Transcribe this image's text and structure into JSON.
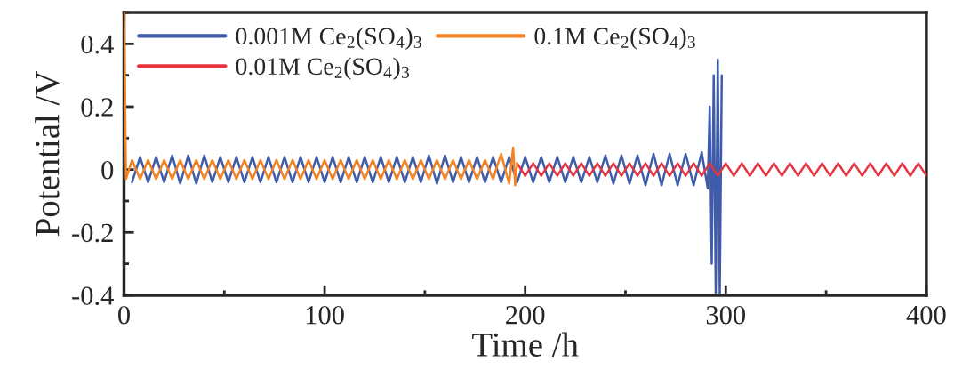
{
  "chart_data": {
    "type": "line",
    "xlabel": "Time /h",
    "ylabel": "Potential /V",
    "xlim": [
      0,
      400
    ],
    "xticks": [
      0,
      100,
      200,
      300,
      400
    ],
    "ylim": [
      -0.4,
      0.5
    ],
    "yticks": [
      -0.4,
      -0.2,
      0,
      0.2,
      0.4
    ],
    "legend": "top left",
    "grid": false,
    "line_style": "solid",
    "marker": "none",
    "series": [
      {
        "name": "0.001M Ce$_{2}$(SO$_{4}$)$_{3}$",
        "color": "#3f5bab",
        "x": [
          4,
          8,
          12,
          16,
          20,
          24,
          28,
          32,
          36,
          40,
          44,
          48,
          52,
          56,
          60,
          64,
          68,
          72,
          76,
          80,
          84,
          88,
          92,
          96,
          100,
          104,
          108,
          112,
          116,
          120,
          124,
          128,
          132,
          136,
          140,
          144,
          148,
          152,
          156,
          160,
          164,
          168,
          172,
          176,
          180,
          184,
          188,
          192,
          196,
          200,
          204,
          208,
          212,
          216,
          220,
          224,
          228,
          232,
          236,
          240,
          244,
          248,
          252,
          256,
          260,
          264,
          268,
          272,
          276,
          280,
          284,
          288,
          291,
          292,
          293,
          294,
          295,
          296,
          297,
          298
        ],
        "values": [
          -0.04,
          0.04,
          -0.04,
          0.04,
          -0.04,
          0.045,
          -0.045,
          0.045,
          -0.045,
          0.045,
          -0.04,
          0.04,
          -0.04,
          0.04,
          -0.04,
          0.04,
          -0.04,
          0.04,
          -0.04,
          0.04,
          -0.04,
          0.04,
          -0.04,
          0.04,
          -0.04,
          0.04,
          -0.04,
          0.04,
          -0.04,
          0.04,
          -0.04,
          0.04,
          -0.04,
          0.04,
          -0.04,
          0.04,
          -0.04,
          0.045,
          -0.045,
          0.045,
          -0.04,
          0.04,
          -0.04,
          0.04,
          -0.04,
          0.04,
          -0.04,
          0.04,
          -0.04,
          0.04,
          -0.04,
          0.04,
          -0.04,
          0.04,
          -0.04,
          0.04,
          -0.04,
          0.04,
          -0.04,
          0.045,
          -0.045,
          0.045,
          -0.045,
          0.045,
          -0.05,
          0.05,
          -0.05,
          0.05,
          -0.05,
          0.05,
          -0.05,
          0.055,
          -0.06,
          0.2,
          -0.3,
          0.3,
          -0.4,
          0.35,
          -0.4,
          0.3
        ]
      },
      {
        "name": "0.01M Ce$_{2}$(SO$_{4}$)$_{3}$",
        "color": "#e8343f",
        "x": [
          196,
          200,
          204,
          208,
          212,
          216,
          220,
          224,
          228,
          232,
          236,
          240,
          244,
          248,
          252,
          256,
          260,
          264,
          268,
          272,
          276,
          280,
          284,
          288,
          292,
          296,
          300,
          304,
          308,
          312,
          316,
          320,
          324,
          328,
          332,
          336,
          340,
          344,
          348,
          352,
          356,
          360,
          364,
          368,
          372,
          376,
          380,
          384,
          388,
          392,
          396,
          400
        ],
        "values": [
          0.02,
          -0.02,
          0.02,
          -0.02,
          0.02,
          -0.02,
          0.02,
          -0.02,
          0.02,
          -0.02,
          0.02,
          -0.02,
          0.02,
          -0.02,
          0.02,
          -0.02,
          0.02,
          -0.02,
          0.02,
          -0.02,
          0.02,
          -0.02,
          0.02,
          -0.02,
          0.02,
          -0.02,
          0.02,
          -0.02,
          0.02,
          -0.02,
          0.02,
          -0.02,
          0.02,
          -0.02,
          0.02,
          -0.02,
          0.02,
          -0.02,
          0.02,
          -0.02,
          0.02,
          -0.02,
          0.02,
          -0.02,
          0.02,
          -0.02,
          0.02,
          -0.02,
          0.02,
          -0.02,
          0.02,
          -0.02
        ]
      },
      {
        "name": "0.1M Ce$_{2}$(SO$_{4}$)$_{3}$",
        "color": "#f5821f",
        "x": [
          0,
          1,
          4,
          8,
          12,
          16,
          20,
          24,
          28,
          32,
          36,
          40,
          44,
          48,
          52,
          56,
          60,
          64,
          68,
          72,
          76,
          80,
          84,
          88,
          92,
          96,
          100,
          104,
          108,
          112,
          116,
          120,
          124,
          128,
          132,
          136,
          140,
          144,
          148,
          152,
          156,
          160,
          164,
          168,
          172,
          176,
          180,
          184,
          188,
          192,
          194,
          195,
          196
        ],
        "values": [
          0.5,
          -0.03,
          0.03,
          -0.03,
          0.03,
          -0.03,
          0.03,
          -0.03,
          0.03,
          -0.03,
          0.03,
          -0.03,
          0.03,
          -0.03,
          0.03,
          -0.03,
          0.03,
          -0.03,
          0.03,
          -0.03,
          0.03,
          -0.03,
          0.03,
          -0.03,
          0.03,
          -0.03,
          0.03,
          -0.03,
          0.03,
          -0.03,
          0.03,
          -0.03,
          0.03,
          -0.03,
          0.03,
          -0.03,
          0.03,
          -0.03,
          0.03,
          -0.03,
          0.03,
          -0.03,
          0.03,
          -0.03,
          0.03,
          -0.03,
          0.03,
          -0.03,
          0.05,
          -0.045,
          0.07,
          -0.05,
          0.02
        ]
      }
    ]
  }
}
